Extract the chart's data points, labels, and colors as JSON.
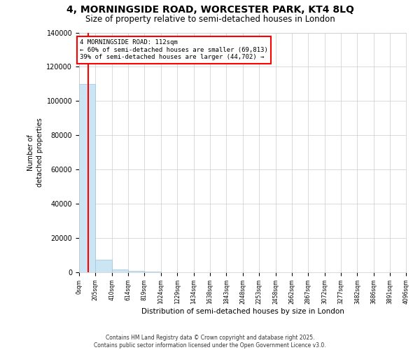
{
  "title": "4, MORNINGSIDE ROAD, WORCESTER PARK, KT4 8LQ",
  "subtitle": "Size of property relative to semi-detached houses in London",
  "xlabel": "Distribution of semi-detached houses by size in London",
  "ylabel": "Number of\ndetached properties",
  "property_size": 112,
  "annotation_line1": "4 MORNINGSIDE ROAD: 112sqm",
  "annotation_line2": "← 60% of semi-detached houses are smaller (69,813)",
  "annotation_line3": "39% of semi-detached houses are larger (44,702) →",
  "bar_color": "#cce5f5",
  "vline_color": "red",
  "ylim": [
    0,
    140000
  ],
  "yticks": [
    0,
    20000,
    40000,
    60000,
    80000,
    100000,
    120000,
    140000
  ],
  "ytick_labels": [
    "0",
    "20000",
    "40000",
    "60000",
    "80000",
    "100000",
    "120000",
    "140000"
  ],
  "bin_edges": [
    0,
    205,
    410,
    614,
    819,
    1024,
    1229,
    1434,
    1638,
    1843,
    2048,
    2253,
    2458,
    2662,
    2867,
    3072,
    3277,
    3482,
    3686,
    3891,
    4096
  ],
  "bin_labels": [
    "0sqm",
    "205sqm",
    "410sqm",
    "614sqm",
    "819sqm",
    "1024sqm",
    "1229sqm",
    "1434sqm",
    "1638sqm",
    "1843sqm",
    "2048sqm",
    "2253sqm",
    "2458sqm",
    "2662sqm",
    "2867sqm",
    "3072sqm",
    "3277sqm",
    "3482sqm",
    "3686sqm",
    "3891sqm",
    "4096sqm"
  ],
  "bar_heights": [
    110000,
    7500,
    1800,
    700,
    350,
    180,
    120,
    80,
    60,
    45,
    35,
    28,
    22,
    18,
    14,
    11,
    9,
    7,
    6,
    5
  ],
  "footer_line1": "Contains HM Land Registry data © Crown copyright and database right 2025.",
  "footer_line2": "Contains public sector information licensed under the Open Government Licence v3.0."
}
